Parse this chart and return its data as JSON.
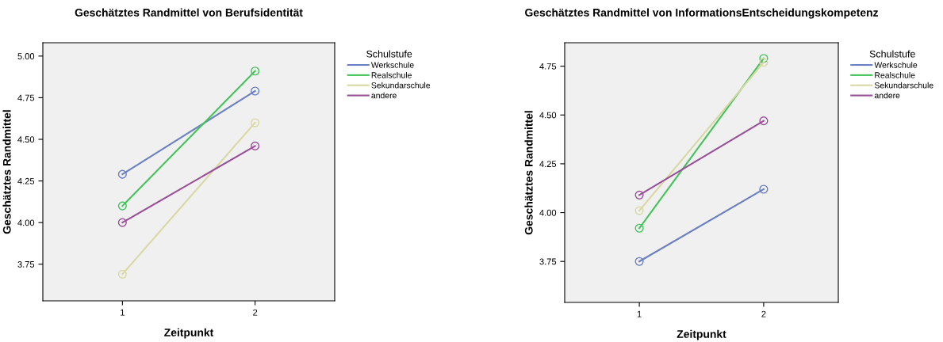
{
  "chart_data": [
    {
      "type": "line",
      "title": "Geschätztes Randmittel von Berufsidentität",
      "xlabel": "Zeitpunkt",
      "ylabel": "Geschätztes Randmittel",
      "legend_title": "Schulstufe",
      "legend": "right",
      "marker": "circle",
      "grid": false,
      "categories": [
        "1",
        "2"
      ],
      "ylim": [
        3.53,
        5.08
      ],
      "yticks": [
        {
          "value": 3.75,
          "label": "3.75"
        },
        {
          "value": 4.0,
          "label": "4.00"
        },
        {
          "value": 4.25,
          "label": "4.25"
        },
        {
          "value": 4.5,
          "label": "4.50"
        },
        {
          "value": 4.75,
          "label": "4.75"
        },
        {
          "value": 5.0,
          "label": "5.00"
        }
      ],
      "series": [
        {
          "name": "Werkschule",
          "color": "#6a7fc4",
          "values": [
            4.29,
            4.79
          ]
        },
        {
          "name": "Realschule",
          "color": "#44c35a",
          "values": [
            4.1,
            4.91
          ]
        },
        {
          "name": "Sekundarschule",
          "color": "#d8d8a4",
          "values": [
            3.69,
            4.6
          ]
        },
        {
          "name": "andere",
          "color": "#9a4e9a",
          "values": [
            4.0,
            4.46
          ]
        }
      ]
    },
    {
      "type": "line",
      "title": "Geschätztes Randmittel von InformationsEntscheidungskompetenz",
      "xlabel": "Zeitpunkt",
      "ylabel": "Geschätztes Randmittel",
      "legend_title": "Schulstufe",
      "legend": "right",
      "marker": "circle",
      "grid": false,
      "categories": [
        "1",
        "2"
      ],
      "ylim": [
        3.54,
        4.87
      ],
      "yticks": [
        {
          "value": 3.75,
          "label": "3.75"
        },
        {
          "value": 4.0,
          "label": "4.00"
        },
        {
          "value": 4.25,
          "label": "4.25"
        },
        {
          "value": 4.5,
          "label": "4.50"
        },
        {
          "value": 4.75,
          "label": "4.75"
        }
      ],
      "series": [
        {
          "name": "Werkschule",
          "color": "#6a7fc4",
          "values": [
            3.75,
            4.12
          ]
        },
        {
          "name": "Realschule",
          "color": "#44c35a",
          "values": [
            3.92,
            4.79
          ]
        },
        {
          "name": "Sekundarschule",
          "color": "#d8d8a4",
          "values": [
            4.01,
            4.77
          ]
        },
        {
          "name": "andere",
          "color": "#9a4e9a",
          "values": [
            4.09,
            4.47
          ]
        }
      ]
    }
  ]
}
